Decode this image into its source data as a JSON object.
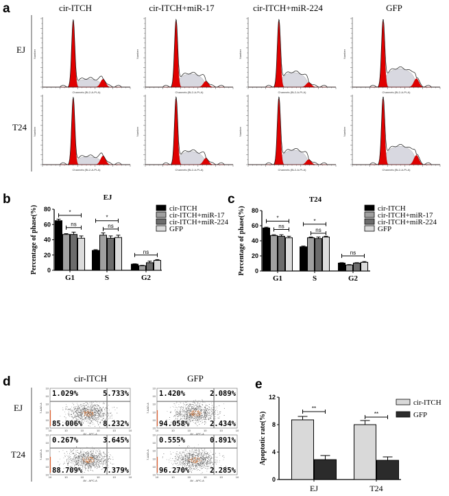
{
  "panel_a": {
    "label": "a",
    "columns": [
      "cir-ITCH",
      "cir-ITCH+miR-17",
      "cir-ITCH+miR-224",
      "GFP"
    ],
    "rows": [
      "EJ",
      "T24"
    ],
    "x_axis_label": "Channels (BL2-A-PI-A)",
    "y_axis_label": "Number",
    "colors": {
      "g1_g2_peaks": "#e00000",
      "s_phase": "#d8d8e0",
      "outline": "#000000"
    }
  },
  "panel_d": {
    "label": "d",
    "columns": [
      "cir-ITCH",
      "GFP"
    ],
    "rows": [
      "EJ",
      "T24"
    ],
    "x_axis_label": "AV - APC-A",
    "y_axis_label": "7-AAD-A",
    "quadrants": [
      [
        {
          "ul": "1.029%",
          "ur": "5.733%",
          "ll": "85.006%",
          "lr": "8.232%"
        },
        {
          "ul": "1.420%",
          "ur": "2.089%",
          "ll": "94.058%",
          "lr": "2.434%"
        }
      ],
      [
        {
          "ul": "0.267%",
          "ur": "3.645%",
          "ll": "88.709%",
          "lr": "7.379%"
        },
        {
          "ul": "0.555%",
          "ur": "0.891%",
          "ll": "96.270%",
          "lr": "2.285%"
        }
      ]
    ]
  },
  "chart_data": [
    {
      "panel": "b",
      "type": "bar",
      "title": "EJ",
      "ylabel": "Percentage of phase(%)",
      "ylim": [
        0,
        80
      ],
      "yticks": [
        0,
        20,
        40,
        60,
        80
      ],
      "categories": [
        "G1",
        "S",
        "G2"
      ],
      "legend_position": "top-right",
      "series": [
        {
          "name": "cir-ITCH",
          "color": "#000000",
          "values": [
            65,
            26,
            8
          ],
          "errors": [
            2,
            1,
            0.5
          ]
        },
        {
          "name": "cir-ITCH+miR-17",
          "color": "#a0a0a0",
          "values": [
            47,
            46,
            6
          ],
          "errors": [
            1,
            3,
            0.5
          ]
        },
        {
          "name": "cir-ITCH+miR-224",
          "color": "#6c6c6c",
          "values": [
            47,
            42,
            10
          ],
          "errors": [
            3,
            3,
            2
          ]
        },
        {
          "name": "GFP",
          "color": "#dcdcdc",
          "values": [
            42,
            43,
            13
          ],
          "errors": [
            3,
            3,
            1
          ]
        }
      ],
      "annotations": [
        {
          "category": "G1",
          "from": 0,
          "to": 3,
          "text": "*",
          "level": 72
        },
        {
          "category": "G1",
          "from": 1,
          "to": 3,
          "text": "ns",
          "level": 56
        },
        {
          "category": "S",
          "from": 0,
          "to": 3,
          "text": "*",
          "level": 65
        },
        {
          "category": "S",
          "from": 1,
          "to": 3,
          "text": "ns",
          "level": 54
        },
        {
          "category": "G2",
          "from": 0,
          "to": 3,
          "text": "ns",
          "level": 20
        }
      ]
    },
    {
      "panel": "c",
      "type": "bar",
      "title": "T24",
      "ylabel": "Percentage of phase(%)",
      "ylim": [
        0,
        80
      ],
      "yticks": [
        0,
        20,
        40,
        60,
        80
      ],
      "categories": [
        "G1",
        "S",
        "G2"
      ],
      "legend_position": "top-right",
      "series": [
        {
          "name": "cir-ITCH",
          "color": "#000000",
          "values": [
            57,
            32,
            10.5
          ],
          "errors": [
            1,
            1,
            0.5
          ]
        },
        {
          "name": "cir-ITCH+miR-17",
          "color": "#a0a0a0",
          "values": [
            47,
            44,
            8
          ],
          "errors": [
            1,
            1,
            0.5
          ]
        },
        {
          "name": "cir-ITCH+miR-224",
          "color": "#6c6c6c",
          "values": [
            46,
            43,
            10.5
          ],
          "errors": [
            2,
            2,
            0.5
          ]
        },
        {
          "name": "GFP",
          "color": "#dcdcdc",
          "values": [
            44,
            45,
            11.5
          ],
          "errors": [
            2,
            1,
            1
          ]
        }
      ],
      "annotations": [
        {
          "category": "G1",
          "from": 0,
          "to": 3,
          "text": "*",
          "level": 66
        },
        {
          "category": "G1",
          "from": 1,
          "to": 3,
          "text": "ns",
          "level": 55
        },
        {
          "category": "S",
          "from": 0,
          "to": 3,
          "text": "*",
          "level": 62
        },
        {
          "category": "S",
          "from": 1,
          "to": 3,
          "text": "ns",
          "level": 50
        },
        {
          "category": "G2",
          "from": 0,
          "to": 3,
          "text": "ns",
          "level": 20
        }
      ]
    },
    {
      "panel": "e",
      "type": "bar",
      "title": "",
      "ylabel": "Apoptotic rate(%)",
      "ylim": [
        0,
        12
      ],
      "yticks": [
        0,
        4,
        8,
        12
      ],
      "categories": [
        "EJ",
        "T24"
      ],
      "legend_position": "top-right",
      "series": [
        {
          "name": "cir-ITCH",
          "color": "#d9d9d9",
          "values": [
            8.7,
            8.0
          ],
          "errors": [
            0.5,
            0.6
          ]
        },
        {
          "name": "GFP",
          "color": "#2b2b2b",
          "values": [
            2.9,
            2.8
          ],
          "errors": [
            0.6,
            0.5
          ]
        }
      ],
      "annotations": [
        {
          "category": "EJ",
          "from": 0,
          "to": 1,
          "text": "**",
          "level": 9.9
        },
        {
          "category": "T24",
          "from": 0,
          "to": 1,
          "text": "**",
          "level": 9.1
        }
      ]
    }
  ]
}
